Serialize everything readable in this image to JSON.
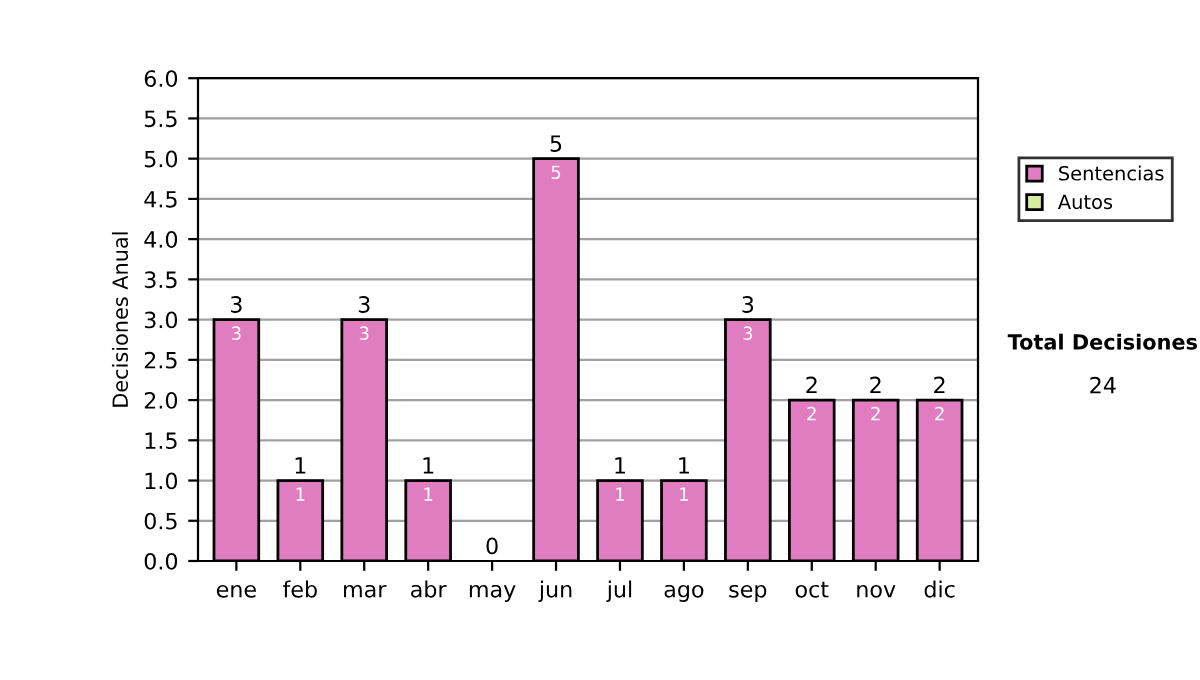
{
  "chart_data": {
    "type": "bar",
    "stacked": true,
    "ylabel": "Decisiones Anual",
    "categories": [
      "ene",
      "feb",
      "mar",
      "abr",
      "may",
      "jun",
      "jul",
      "ago",
      "sep",
      "oct",
      "nov",
      "dic"
    ],
    "series": [
      {
        "name": "Sentencias",
        "color": "#e07cc0",
        "values": [
          3,
          1,
          3,
          1,
          0,
          5,
          1,
          1,
          3,
          2,
          2,
          2
        ],
        "value_labels": [
          "3",
          "1",
          "3",
          "1",
          null,
          "5",
          "1",
          "1",
          "3",
          "2",
          "2",
          "2"
        ]
      },
      {
        "name": "Autos",
        "color": "#d8eca0",
        "values": [
          0,
          0,
          0,
          0,
          0,
          0,
          0,
          0,
          0,
          0,
          0,
          0
        ]
      }
    ],
    "totals": [
      "3",
      "1",
      "3",
      "1",
      "0",
      "5",
      "1",
      "1",
      "3",
      "2",
      "2",
      "2"
    ],
    "ylim": [
      0,
      6
    ],
    "yticks": [
      {
        "value": 0,
        "label": "0.0"
      },
      {
        "value": 0.5,
        "label": "0.5"
      },
      {
        "value": 1,
        "label": "1.0"
      },
      {
        "value": 1.5,
        "label": "1.5"
      },
      {
        "value": 2,
        "label": "2.0"
      },
      {
        "value": 2.5,
        "label": "2.5"
      },
      {
        "value": 3,
        "label": "3.0"
      },
      {
        "value": 3.5,
        "label": "3.5"
      },
      {
        "value": 4,
        "label": "4.0"
      },
      {
        "value": 4.5,
        "label": "4.5"
      },
      {
        "value": 5,
        "label": "5.0"
      },
      {
        "value": 5.5,
        "label": "5.5"
      },
      {
        "value": 6,
        "label": "6.0"
      }
    ],
    "grid": "y",
    "legend": "right",
    "annotations": [
      "Total Decisiones",
      "24"
    ]
  }
}
